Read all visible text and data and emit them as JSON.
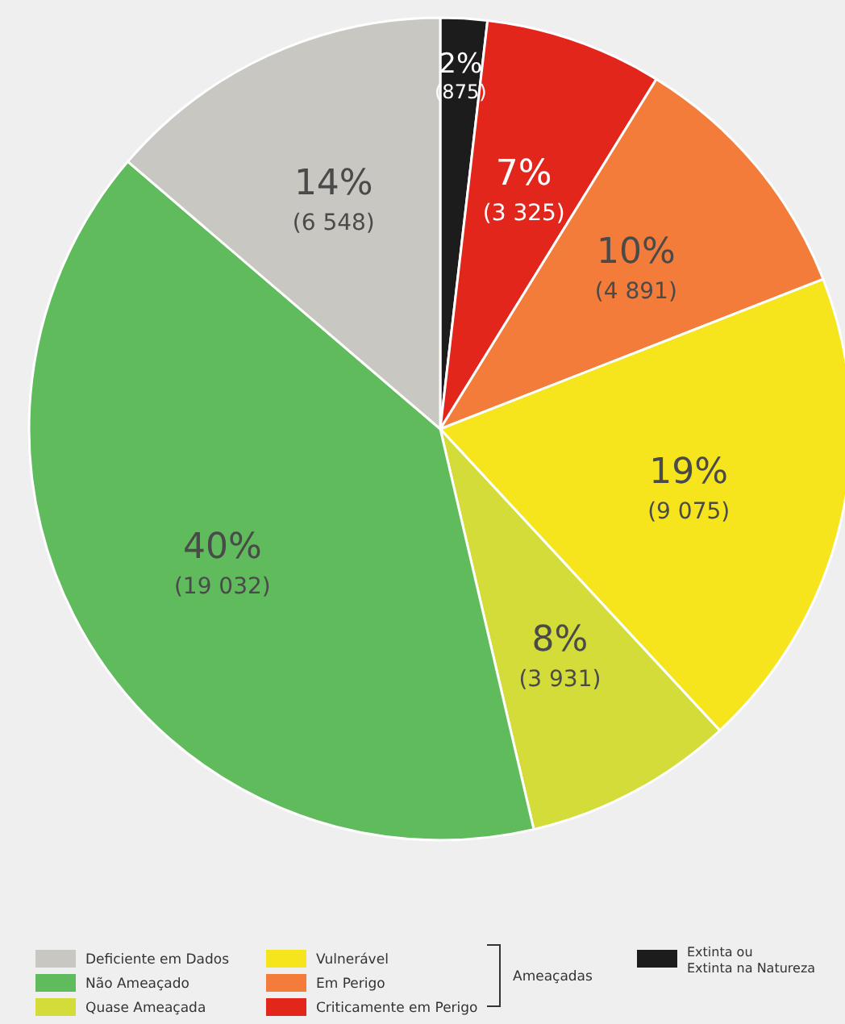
{
  "chart_data": {
    "type": "pie",
    "categories": [
      "Extinta ou Extinta na Natureza",
      "Criticamente em Perigo",
      "Em Perigo",
      "Vulnerável",
      "Quase Ameaçada",
      "Não Ameaçado",
      "Deficiente em Dados"
    ],
    "values": [
      875,
      3325,
      4891,
      9075,
      3931,
      19032,
      6548
    ],
    "colors": [
      "#1c1c1c",
      "#e2261c",
      "#f47c3a",
      "#f6e41c",
      "#d3dc38",
      "#5fbb5c",
      "#c9c7c1"
    ],
    "value_labels": [
      "2%\n(875)",
      "7%\n(3 325)",
      "10%\n(4 891)",
      "19%\n(9 075)",
      "8%\n(3 931)",
      "40%\n(19 032)",
      "14%\n(6 548)"
    ],
    "legend": "bottom",
    "annotations": [
      "Ameaçadas"
    ]
  }
}
